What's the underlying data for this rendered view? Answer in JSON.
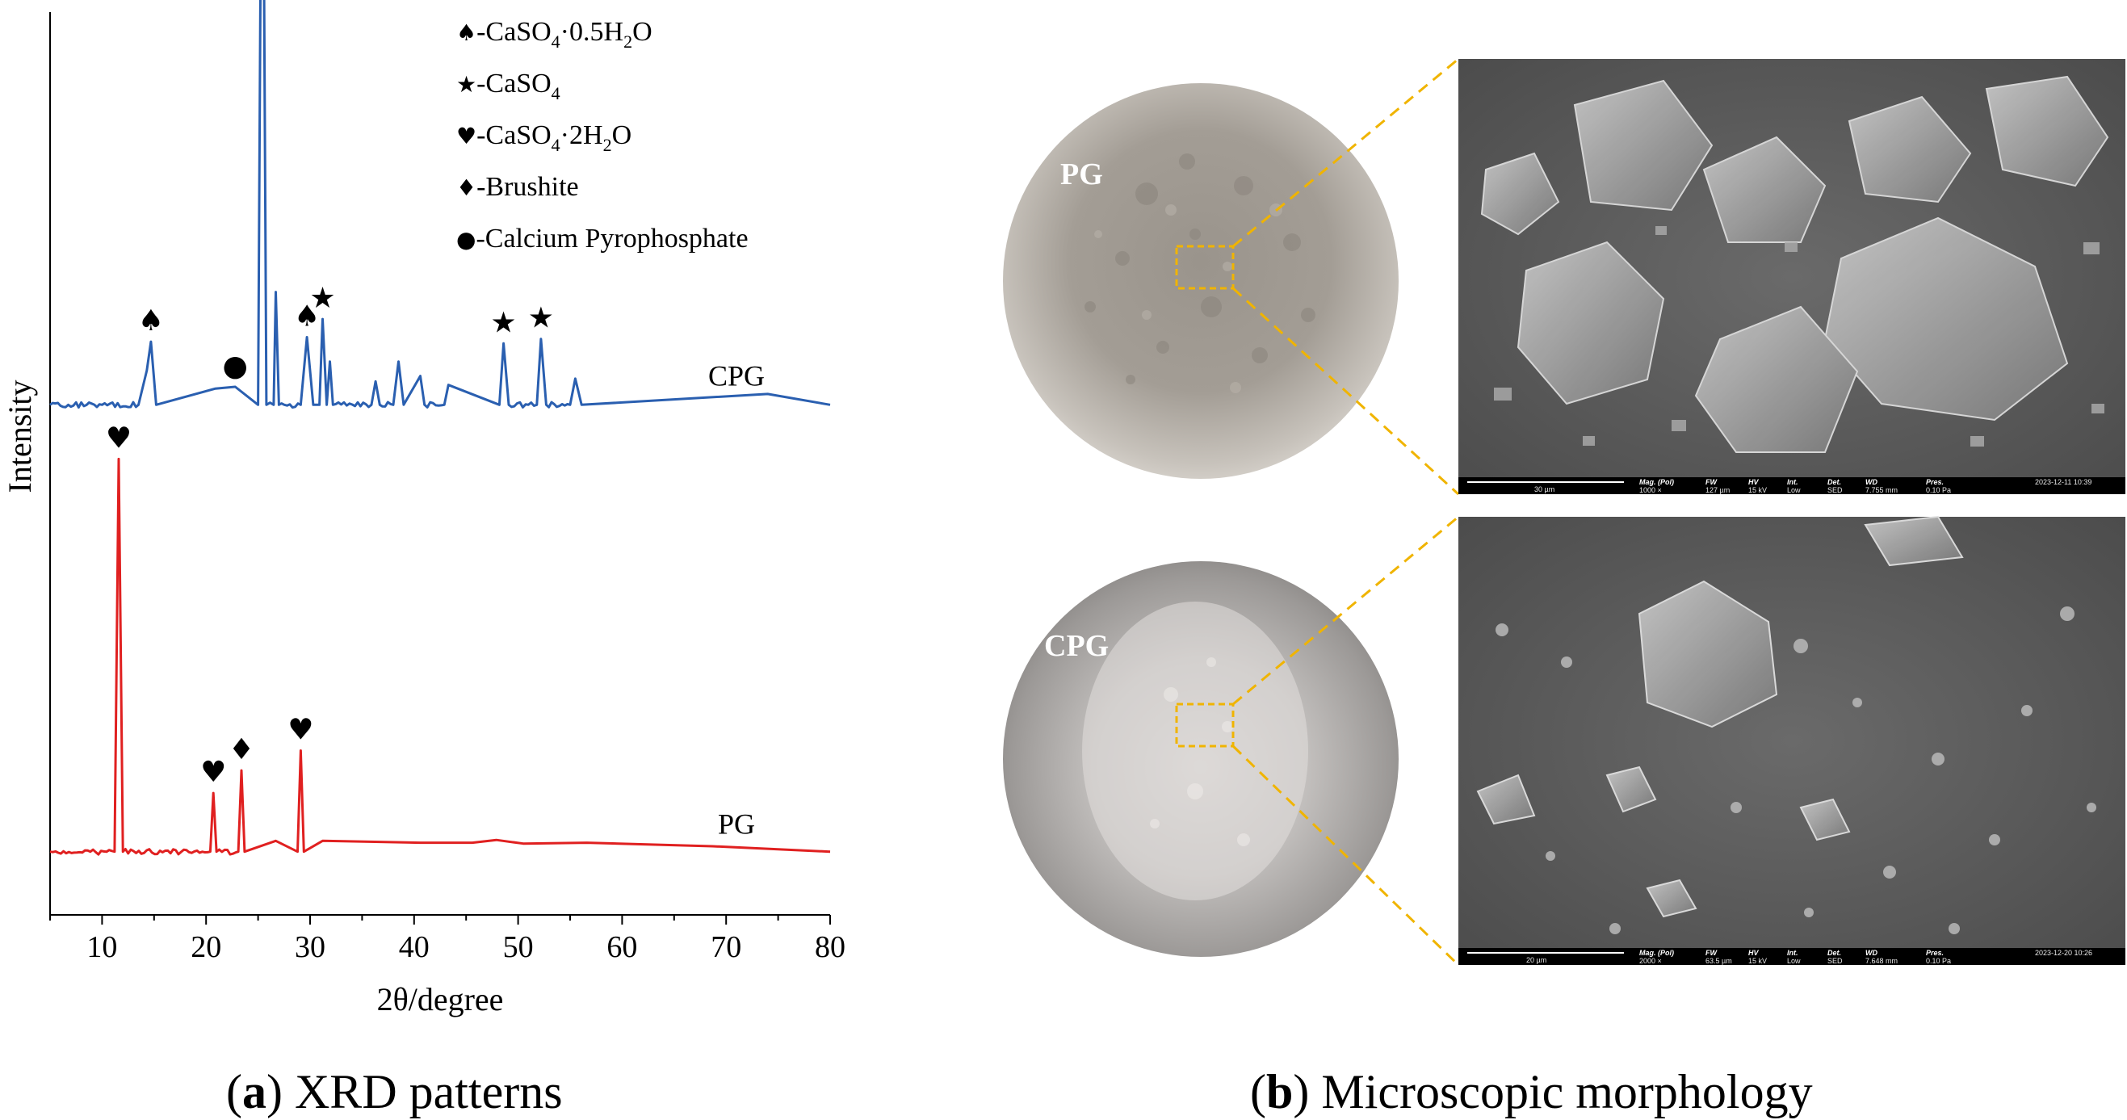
{
  "chart_data": {
    "type": "line",
    "title": "",
    "xlabel": "2θ/degree",
    "ylabel": "Intensity",
    "xlim": [
      5,
      80
    ],
    "xticks": [
      10,
      20,
      30,
      40,
      50,
      60,
      70,
      80
    ],
    "series": [
      {
        "name": "CPG",
        "color": "#2a5fb0",
        "baseline": 0.565,
        "x": [
          5,
          10.0,
          13.5,
          14.3,
          14.7,
          15.2,
          20.9,
          22.8,
          25.0,
          25.4,
          25.8,
          26.5,
          26.7,
          27.0,
          29.1,
          29.7,
          30.3,
          30.9,
          31.2,
          31.6,
          31.9,
          32.2,
          35.9,
          36.3,
          36.7,
          38.0,
          38.5,
          39.0,
          40.6,
          41.0,
          42.9,
          43.3,
          48.2,
          48.6,
          49.1,
          51.8,
          52.2,
          52.7,
          55.0,
          55.5,
          56.1,
          74.0,
          80
        ],
        "y": [
          0,
          0,
          0,
          0.038,
          0.07,
          0,
          0.018,
          0.02,
          0,
          0.82,
          0,
          0,
          0.125,
          0,
          0,
          0.075,
          0,
          0,
          0.095,
          0,
          0.048,
          0,
          0,
          0.026,
          0,
          0,
          0.048,
          0,
          0.032,
          0,
          0,
          0.022,
          0,
          0.068,
          0,
          0,
          0.073,
          0,
          0,
          0.029,
          0,
          0.012,
          0
        ]
      },
      {
        "name": "PG",
        "color": "#e02020",
        "baseline": 0.07,
        "x": [
          5,
          11.2,
          11.6,
          12.0,
          20.4,
          20.7,
          21.0,
          23.1,
          23.4,
          23.7,
          26.7,
          28.8,
          29.1,
          29.4,
          31.2,
          40.6,
          43.4,
          45.6,
          47.9,
          50.5,
          56.6,
          68.7,
          80
        ],
        "y": [
          0,
          0,
          0.435,
          0,
          0,
          0.065,
          0,
          0,
          0.09,
          0,
          0.012,
          0,
          0.112,
          0,
          0.012,
          0.01,
          0.01,
          0.01,
          0.013,
          0.009,
          0.01,
          0.006,
          0
        ]
      }
    ],
    "annotations": [
      {
        "symbol": "♠",
        "x": 14.7,
        "series": "CPG"
      },
      {
        "symbol": "●",
        "x": 22.8,
        "series": "CPG"
      },
      {
        "symbol": "★",
        "x": 25.4,
        "series": "CPG"
      },
      {
        "symbol": "♠",
        "x": 29.7,
        "series": "CPG"
      },
      {
        "symbol": "★",
        "x": 31.2,
        "series": "CPG"
      },
      {
        "symbol": "★",
        "x": 48.6,
        "series": "CPG"
      },
      {
        "symbol": "★",
        "x": 52.2,
        "series": "CPG"
      },
      {
        "symbol": "♥",
        "x": 11.6,
        "series": "PG"
      },
      {
        "symbol": "♥",
        "x": 20.7,
        "series": "PG"
      },
      {
        "symbol": "♦",
        "x": 23.4,
        "series": "PG"
      },
      {
        "symbol": "♥",
        "x": 29.1,
        "series": "PG"
      }
    ],
    "legend": {
      "placement": "top-right",
      "entries": [
        {
          "symbol": "♠",
          "label": "-CaSO",
          "sub": "4",
          "tail": "·0.5H",
          "sub2": "2",
          "tail2": "O"
        },
        {
          "symbol": "★",
          "label": "-CaSO",
          "sub": "4",
          "tail": "",
          "sub2": "",
          "tail2": ""
        },
        {
          "symbol": "♥",
          "label": "-CaSO",
          "sub": "4",
          "tail": "·2H",
          "sub2": "2",
          "tail2": "O"
        },
        {
          "symbol": "♦",
          "label": "-Brushite",
          "sub": "",
          "tail": "",
          "sub2": "",
          "tail2": ""
        },
        {
          "symbol": "●",
          "label": "-Calcium Pyrophosphate",
          "sub": "",
          "tail": "",
          "sub2": "",
          "tail2": ""
        }
      ]
    },
    "grid": false
  },
  "captions": {
    "a_letter": "a",
    "a_text": " XRD patterns",
    "b_letter": "b",
    "b_text": " Microscopic morphology"
  },
  "photos": {
    "top_label": "PG",
    "bottom_label": "CPG"
  },
  "sem": {
    "top": {
      "scale": "30 µm",
      "heads": [
        "Mag. (Pol)",
        "FW",
        "HV",
        "Int.",
        "Det.",
        "WD",
        "Pres."
      ],
      "values": [
        "1000 ×",
        "127 µm",
        "15 kV",
        "Low",
        "SED",
        "7.755 mm",
        "0.10 Pa"
      ],
      "date": "2023-12-11 10:39"
    },
    "bottom": {
      "scale": "20 µm",
      "heads": [
        "Mag. (Pol)",
        "FW",
        "HV",
        "Int.",
        "Det.",
        "WD",
        "Pres."
      ],
      "values": [
        "2000 ×",
        "63.5 µm",
        "15 kV",
        "Low",
        "SED",
        "7.648 mm",
        "0.10 Pa"
      ],
      "date": "2023-12-20 10:26"
    }
  }
}
